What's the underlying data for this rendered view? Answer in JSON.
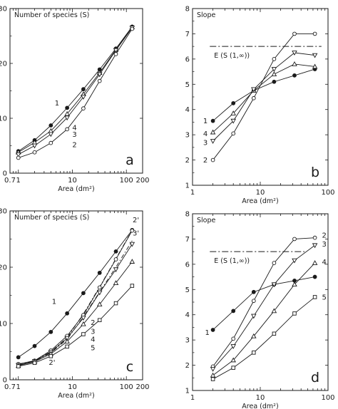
{
  "chart_data": [
    {
      "id": "a",
      "type": "line",
      "panel_label": "a",
      "xscale": "log",
      "xlim": [
        0.7,
        200
      ],
      "ylim": [
        0,
        30
      ],
      "xticks": [
        {
          "v": 0.7,
          "label": "0.7"
        },
        {
          "v": 1,
          "label": "1"
        },
        {
          "v": 10,
          "label": "10"
        },
        {
          "v": 100,
          "label": "100"
        },
        {
          "v": 200,
          "label": "200"
        }
      ],
      "yticks": [
        0,
        10,
        20,
        30
      ],
      "xlabel": "Area (dm²)",
      "ylabel": "Number of species (S)",
      "series": [
        {
          "label": "1",
          "marker": "filled-circle",
          "label_at": [
            5.2,
            12.8
          ],
          "x": [
            1,
            2,
            4,
            8,
            16,
            32,
            64,
            128
          ],
          "y": [
            4,
            6,
            8.7,
            11.9,
            15.3,
            18.9,
            22.7,
            26.7
          ]
        },
        {
          "label": "4",
          "marker": "open-triangle",
          "label_at": [
            11,
            8.3
          ],
          "x": [
            1,
            2,
            4,
            8,
            16,
            32,
            64,
            128
          ],
          "y": [
            3.8,
            5.6,
            7.7,
            10.8,
            14.4,
            18.3,
            22.5,
            26.6
          ]
        },
        {
          "label": "3",
          "marker": "open-down-triangle",
          "label_at": [
            11,
            7.1
          ],
          "x": [
            1,
            2,
            4,
            8,
            16,
            32,
            64,
            128
          ],
          "y": [
            3.4,
            5,
            7.1,
            10.1,
            13.9,
            18,
            22.4,
            26.5
          ]
        },
        {
          "label": "2",
          "marker": "open-circle",
          "label_at": [
            11,
            5.2
          ],
          "x": [
            1,
            2,
            4,
            8,
            16,
            32,
            64,
            128
          ],
          "y": [
            2.8,
            3.8,
            5.5,
            8,
            11.8,
            16.8,
            21.7,
            26.3
          ]
        }
      ]
    },
    {
      "id": "b",
      "type": "line",
      "panel_label": "b",
      "xscale": "log",
      "xlim": [
        1,
        100
      ],
      "ylim": [
        1,
        8
      ],
      "xticks": [
        {
          "v": 1,
          "label": "1"
        },
        {
          "v": 10,
          "label": "10"
        },
        {
          "v": 100,
          "label": "100"
        }
      ],
      "yticks": [
        1,
        2,
        3,
        4,
        5,
        6,
        7,
        8
      ],
      "xlabel": "Area (dm²)",
      "ylabel": "Slope",
      "reference_line": {
        "label": "E (S (1,∞))",
        "y": 6.5,
        "x_from": 1.8,
        "x_to": 80
      },
      "series": [
        {
          "label": "1",
          "marker": "filled-circle",
          "label_at": [
            1.55,
            3.55
          ],
          "x": [
            2,
            4,
            8,
            16,
            32,
            64
          ],
          "y": [
            3.55,
            4.25,
            4.75,
            5.1,
            5.35,
            5.6
          ]
        },
        {
          "label": "4",
          "marker": "open-triangle",
          "label_at": [
            1.55,
            3.05
          ],
          "x": [
            2,
            4,
            8,
            16,
            32,
            64
          ],
          "y": [
            3.1,
            3.85,
            4.75,
            5.4,
            5.8,
            5.7
          ]
        },
        {
          "label": "3",
          "marker": "open-down-triangle",
          "label_at": [
            1.55,
            2.7
          ],
          "x": [
            2,
            4,
            8,
            16,
            32,
            64
          ],
          "y": [
            2.75,
            3.55,
            4.8,
            5.6,
            6.25,
            6.15
          ]
        },
        {
          "label": "2",
          "marker": "open-circle",
          "label_at": [
            1.55,
            2
          ],
          "x": [
            2,
            4,
            8,
            16,
            32,
            64
          ],
          "y": [
            2,
            3.05,
            4.45,
            6,
            7,
            7
          ]
        }
      ]
    },
    {
      "id": "c",
      "type": "line",
      "panel_label": "c",
      "xscale": "log",
      "xlim": [
        0.7,
        200
      ],
      "ylim": [
        0,
        30
      ],
      "xticks": [
        {
          "v": 0.7,
          "label": "0.7"
        },
        {
          "v": 1,
          "label": "1"
        },
        {
          "v": 10,
          "label": "10"
        },
        {
          "v": 100,
          "label": "100"
        },
        {
          "v": 200,
          "label": "200"
        }
      ],
      "yticks": [
        0,
        10,
        20,
        30
      ],
      "xlabel": "Area (dm²)",
      "ylabel": "Number of species (S)",
      "series": [
        {
          "label": "1",
          "marker": "filled-circle",
          "label_at": [
            4.6,
            13.9
          ],
          "x": [
            1,
            2,
            4,
            8,
            16,
            32,
            64,
            128
          ],
          "y": [
            4,
            6,
            8.5,
            11.8,
            15.4,
            19,
            22.8,
            26.6
          ]
        },
        {
          "label": "2'",
          "marker": "none",
          "label_at": [
            150,
            28.4
          ],
          "x": [
            1,
            2,
            4,
            8,
            16,
            32,
            64,
            128
          ],
          "y": [
            2.7,
            3.4,
            5,
            7.5,
            11.7,
            16.5,
            21.5,
            26.6
          ]
        },
        {
          "label": "3'",
          "marker": "none",
          "label_at": [
            150,
            26.1
          ],
          "x": [
            1,
            2,
            4,
            8,
            16,
            32,
            64,
            128
          ],
          "y": [
            2.6,
            3.3,
            4.8,
            7.2,
            11.2,
            15.6,
            20,
            24.7
          ]
        },
        {
          "label": "2",
          "marker": "open-circle",
          "label_at": [
            24,
            10.2
          ],
          "x": [
            1,
            2,
            4,
            8,
            16,
            32,
            64,
            128
          ],
          "y": [
            2.8,
            3.4,
            5.2,
            7.8,
            11.5,
            16.4,
            21.4,
            26.5
          ]
        },
        {
          "label": "3",
          "marker": "open-down-triangle",
          "label_at": [
            24,
            8.6
          ],
          "x": [
            1,
            2,
            4,
            8,
            16,
            32,
            64,
            128
          ],
          "y": [
            2.6,
            3.3,
            4.9,
            7.4,
            11,
            15.5,
            19.6,
            24.1
          ]
        },
        {
          "label": "4",
          "marker": "open-triangle",
          "label_at": [
            24,
            7.2
          ],
          "x": [
            1,
            2,
            4,
            8,
            16,
            32,
            64,
            128
          ],
          "y": [
            2.5,
            3.2,
            4.6,
            6.8,
            9.9,
            13.4,
            17.2,
            21
          ]
        },
        {
          "label": "5",
          "marker": "open-square",
          "label_at": [
            24,
            5.7
          ],
          "x": [
            1,
            2,
            4,
            8,
            16,
            32,
            64,
            128
          ],
          "y": [
            2.4,
            3,
            4.2,
            5.9,
            8.1,
            10.6,
            13.6,
            16.7
          ]
        }
      ],
      "extra_labels": [
        {
          "text": "2'",
          "at": [
            4.2,
            3.1
          ]
        }
      ]
    },
    {
      "id": "d",
      "type": "line",
      "panel_label": "d",
      "xscale": "log",
      "xlim": [
        1,
        100
      ],
      "ylim": [
        1,
        8
      ],
      "xticks": [
        {
          "v": 1,
          "label": "1"
        },
        {
          "v": 10,
          "label": "10"
        },
        {
          "v": 100,
          "label": "100"
        }
      ],
      "yticks": [
        1,
        2,
        3,
        4,
        5,
        6,
        7,
        8
      ],
      "xlabel": "Area (dm²)",
      "ylabel": "Slope",
      "reference_line": {
        "label": "E (S (1,∞))",
        "y": 6.5,
        "x_from": 1.8,
        "x_to": 45
      },
      "series": [
        {
          "label": "1",
          "marker": "filled-circle",
          "label_at": [
            1.65,
            3.3
          ],
          "x": [
            2,
            4,
            8,
            16,
            32,
            64
          ],
          "y": [
            3.4,
            4.15,
            4.9,
            5.2,
            5.35,
            5.5
          ]
        },
        {
          "label": "2",
          "marker": "open-circle",
          "label_at": [
            88,
            7.15
          ],
          "x": [
            2,
            4,
            8,
            16,
            32,
            64
          ],
          "y": [
            1.95,
            3.05,
            4.55,
            6.05,
            7,
            7.05
          ]
        },
        {
          "label": "3",
          "marker": "open-down-triangle",
          "label_at": [
            88,
            6.8
          ],
          "x": [
            2,
            4,
            8,
            16,
            32,
            64
          ],
          "y": [
            1.85,
            2.75,
            3.95,
            5.2,
            6.15,
            6.75
          ]
        },
        {
          "label": "4",
          "marker": "open-triangle",
          "label_at": [
            88,
            6.1
          ],
          "x": [
            2,
            4,
            8,
            16,
            32,
            64
          ],
          "y": [
            1.6,
            2.2,
            3.15,
            4.15,
            5.2,
            6.05
          ]
        },
        {
          "label": "5",
          "marker": "open-square",
          "label_at": [
            88,
            4.7
          ],
          "x": [
            2,
            4,
            8,
            16,
            32,
            64
          ],
          "y": [
            1.45,
            1.9,
            2.5,
            3.25,
            4.05,
            4.7
          ]
        }
      ]
    }
  ]
}
